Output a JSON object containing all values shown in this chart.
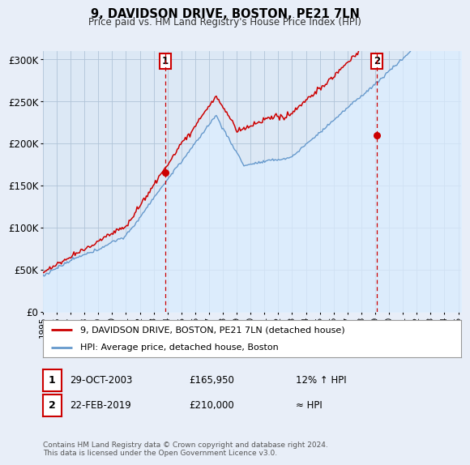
{
  "title": "9, DAVIDSON DRIVE, BOSTON, PE21 7LN",
  "subtitle": "Price paid vs. HM Land Registry's House Price Index (HPI)",
  "ylabel_ticks": [
    "£0",
    "£50K",
    "£100K",
    "£150K",
    "£200K",
    "£250K",
    "£300K"
  ],
  "ytick_values": [
    0,
    50000,
    100000,
    150000,
    200000,
    250000,
    300000
  ],
  "ylim": [
    0,
    310000
  ],
  "xlim_start": 1995.0,
  "xlim_end": 2025.2,
  "sale1_x": 2003.83,
  "sale1_y": 165950,
  "sale2_x": 2019.13,
  "sale2_y": 210000,
  "line_color_property": "#cc0000",
  "line_color_hpi": "#6699cc",
  "fill_color_hpi": "#ddeeff",
  "legend_property": "9, DAVIDSON DRIVE, BOSTON, PE21 7LN (detached house)",
  "legend_hpi": "HPI: Average price, detached house, Boston",
  "copyright": "Contains HM Land Registry data © Crown copyright and database right 2024.\nThis data is licensed under the Open Government Licence v3.0.",
  "background_color": "#e8eef8",
  "plot_bg_color": "#dce8f5"
}
